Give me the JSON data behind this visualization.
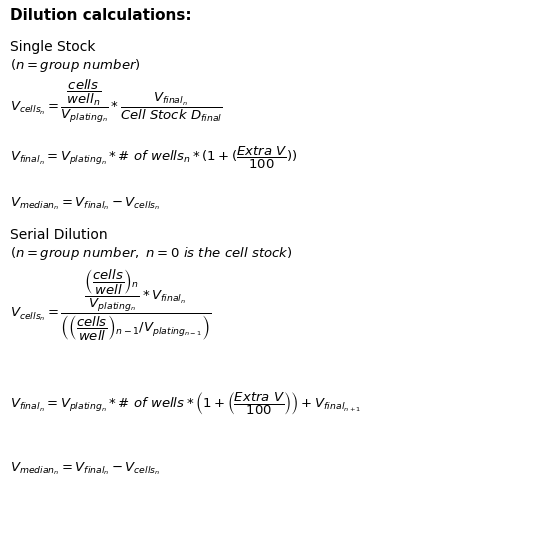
{
  "title": "Dilution calculations:",
  "background_color": "#ffffff",
  "text_color": "#000000",
  "figsize": [
    5.45,
    5.33
  ],
  "dpi": 100,
  "fs_title": 11,
  "fs_section": 10,
  "fs_italic": 9.5,
  "fs_formula": 9.5
}
